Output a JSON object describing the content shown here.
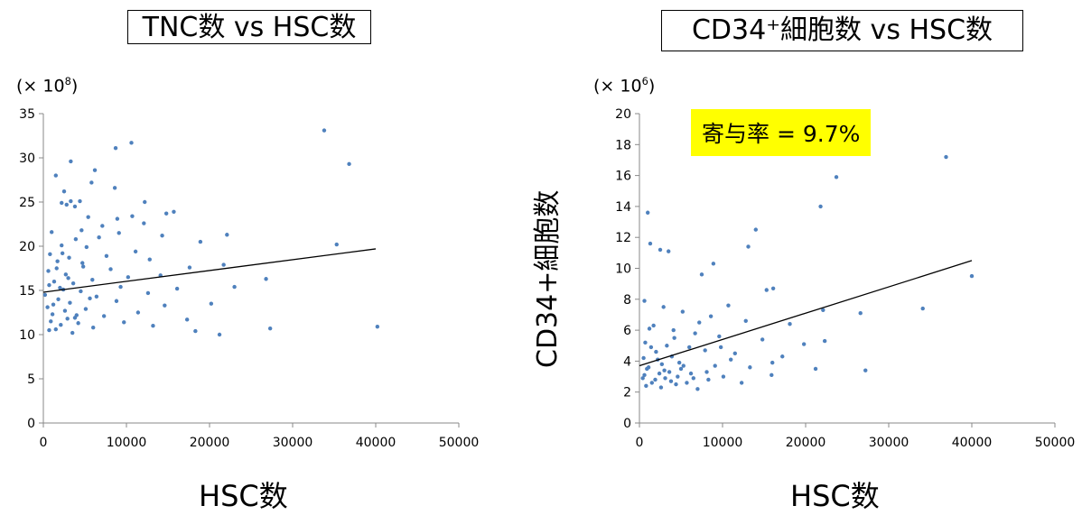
{
  "chart_data": [
    {
      "type": "scatter",
      "title": "TNC数 vs HSC数",
      "xlabel": "HSC数",
      "ylabel": "",
      "y_multiplier": {
        "base": "(× 10",
        "exp": "8",
        "close": ")"
      },
      "xlim": [
        0,
        50000
      ],
      "ylim": [
        0,
        35
      ],
      "x_ticks": [
        0,
        10000,
        20000,
        30000,
        40000,
        50000
      ],
      "y_ticks": [
        0,
        5,
        10,
        15,
        20,
        25,
        30,
        35
      ],
      "grid": false,
      "point_color": "#4f81bd",
      "trendline": {
        "x": [
          0,
          40000
        ],
        "y": [
          14.8,
          19.7
        ],
        "color": "#000000"
      },
      "points": [
        [
          33800,
          33.1
        ],
        [
          10600,
          31.7
        ],
        [
          8700,
          31.1
        ],
        [
          36800,
          29.3
        ],
        [
          3300,
          29.6
        ],
        [
          6200,
          28.6
        ],
        [
          1500,
          28.0
        ],
        [
          8600,
          26.6
        ],
        [
          5800,
          27.2
        ],
        [
          2500,
          26.2
        ],
        [
          3300,
          25.1
        ],
        [
          4400,
          25.1
        ],
        [
          12200,
          25.0
        ],
        [
          2200,
          24.9
        ],
        [
          3800,
          24.5
        ],
        [
          2800,
          24.7
        ],
        [
          5400,
          23.3
        ],
        [
          8900,
          23.1
        ],
        [
          10700,
          23.4
        ],
        [
          14800,
          23.7
        ],
        [
          15700,
          23.9
        ],
        [
          12100,
          22.6
        ],
        [
          7100,
          22.3
        ],
        [
          1000,
          21.6
        ],
        [
          4600,
          21.8
        ],
        [
          22100,
          21.3
        ],
        [
          14300,
          21.2
        ],
        [
          9100,
          21.5
        ],
        [
          6700,
          21.0
        ],
        [
          3900,
          20.8
        ],
        [
          35300,
          20.2
        ],
        [
          18900,
          20.5
        ],
        [
          2200,
          20.1
        ],
        [
          5200,
          19.9
        ],
        [
          11100,
          19.4
        ],
        [
          800,
          19.1
        ],
        [
          3100,
          18.7
        ],
        [
          7600,
          18.9
        ],
        [
          12800,
          18.5
        ],
        [
          1700,
          18.3
        ],
        [
          21700,
          17.9
        ],
        [
          4800,
          17.7
        ],
        [
          17600,
          17.6
        ],
        [
          8100,
          17.4
        ],
        [
          600,
          17.2
        ],
        [
          2700,
          16.8
        ],
        [
          10200,
          16.5
        ],
        [
          14100,
          16.7
        ],
        [
          5900,
          16.2
        ],
        [
          1300,
          16.0
        ],
        [
          26800,
          16.3
        ],
        [
          3600,
          15.8
        ],
        [
          700,
          15.6
        ],
        [
          9300,
          15.4
        ],
        [
          23000,
          15.4
        ],
        [
          16100,
          15.2
        ],
        [
          2400,
          15.1
        ],
        [
          4500,
          14.9
        ],
        [
          12600,
          14.7
        ],
        [
          200,
          14.5
        ],
        [
          6400,
          14.3
        ],
        [
          1800,
          14.0
        ],
        [
          8800,
          13.8
        ],
        [
          3200,
          13.6
        ],
        [
          20200,
          13.5
        ],
        [
          14600,
          13.3
        ],
        [
          500,
          13.1
        ],
        [
          5100,
          12.9
        ],
        [
          2600,
          12.7
        ],
        [
          11400,
          12.5
        ],
        [
          1100,
          12.3
        ],
        [
          7300,
          12.1
        ],
        [
          3800,
          11.9
        ],
        [
          17300,
          11.7
        ],
        [
          900,
          11.5
        ],
        [
          4200,
          11.3
        ],
        [
          2100,
          11.1
        ],
        [
          9700,
          11.4
        ],
        [
          27300,
          10.7
        ],
        [
          13200,
          11.0
        ],
        [
          40200,
          10.9
        ],
        [
          1500,
          10.6
        ],
        [
          6000,
          10.8
        ],
        [
          18300,
          10.4
        ],
        [
          21200,
          10.0
        ],
        [
          3500,
          10.2
        ],
        [
          700,
          10.5
        ],
        [
          2900,
          11.8
        ],
        [
          4000,
          12.2
        ],
        [
          1200,
          13.4
        ],
        [
          5600,
          14.1
        ],
        [
          2000,
          15.3
        ],
        [
          3000,
          16.4
        ],
        [
          1600,
          17.5
        ],
        [
          4700,
          18.1
        ],
        [
          2300,
          19.2
        ]
      ]
    },
    {
      "type": "scatter",
      "title": "CD34⁺細胞数 vs HSC数",
      "xlabel": "HSC数",
      "ylabel": "CD34+細胞数",
      "y_multiplier": {
        "base": "(× 10",
        "exp": "6",
        "close": ")"
      },
      "annotation": "寄与率 = 9.7%",
      "annotation_color": "#ffff00",
      "xlim": [
        0,
        50000
      ],
      "ylim": [
        0,
        20
      ],
      "x_ticks": [
        0,
        10000,
        20000,
        30000,
        40000,
        50000
      ],
      "y_ticks": [
        0,
        2,
        4,
        6,
        8,
        10,
        12,
        14,
        16,
        18,
        20
      ],
      "grid": false,
      "point_color": "#4f81bd",
      "trendline": {
        "x": [
          0,
          40000
        ],
        "y": [
          3.7,
          10.5
        ],
        "color": "#000000"
      },
      "points": [
        [
          36900,
          17.2
        ],
        [
          23700,
          15.9
        ],
        [
          21800,
          14.0
        ],
        [
          1000,
          13.6
        ],
        [
          14000,
          12.5
        ],
        [
          1300,
          11.6
        ],
        [
          2500,
          11.2
        ],
        [
          3500,
          11.1
        ],
        [
          13100,
          11.4
        ],
        [
          40000,
          9.5
        ],
        [
          8900,
          10.3
        ],
        [
          7500,
          9.6
        ],
        [
          34100,
          7.4
        ],
        [
          15300,
          8.6
        ],
        [
          16100,
          8.7
        ],
        [
          10700,
          7.6
        ],
        [
          26600,
          7.1
        ],
        [
          22100,
          7.3
        ],
        [
          600,
          7.9
        ],
        [
          2900,
          7.5
        ],
        [
          5200,
          7.2
        ],
        [
          8600,
          6.9
        ],
        [
          12800,
          6.6
        ],
        [
          18100,
          6.4
        ],
        [
          1700,
          6.3
        ],
        [
          4100,
          6.0
        ],
        [
          6700,
          5.8
        ],
        [
          9600,
          5.6
        ],
        [
          14800,
          5.4
        ],
        [
          22300,
          5.3
        ],
        [
          700,
          5.2
        ],
        [
          3300,
          5.0
        ],
        [
          7900,
          4.7
        ],
        [
          11500,
          4.5
        ],
        [
          17200,
          4.3
        ],
        [
          500,
          4.2
        ],
        [
          2200,
          4.1
        ],
        [
          4800,
          3.9
        ],
        [
          9100,
          3.7
        ],
        [
          16000,
          3.9
        ],
        [
          21200,
          3.5
        ],
        [
          27200,
          3.4
        ],
        [
          1100,
          3.6
        ],
        [
          3000,
          3.4
        ],
        [
          6200,
          3.2
        ],
        [
          10100,
          3.0
        ],
        [
          15900,
          3.1
        ],
        [
          400,
          2.9
        ],
        [
          1900,
          2.8
        ],
        [
          3800,
          2.7
        ],
        [
          5700,
          2.6
        ],
        [
          8300,
          2.8
        ],
        [
          12300,
          2.6
        ],
        [
          800,
          2.4
        ],
        [
          2600,
          2.3
        ],
        [
          4400,
          2.5
        ],
        [
          7000,
          2.2
        ],
        [
          1500,
          2.6
        ],
        [
          3600,
          3.3
        ],
        [
          5000,
          3.5
        ],
        [
          2000,
          4.6
        ],
        [
          6000,
          4.9
        ],
        [
          4200,
          5.5
        ],
        [
          1200,
          6.1
        ],
        [
          7200,
          6.5
        ],
        [
          9800,
          4.9
        ],
        [
          2700,
          3.8
        ],
        [
          600,
          3.1
        ],
        [
          3100,
          2.9
        ],
        [
          5300,
          3.7
        ],
        [
          8100,
          3.3
        ],
        [
          11000,
          4.1
        ],
        [
          13300,
          3.6
        ],
        [
          19800,
          5.1
        ],
        [
          1400,
          4.9
        ],
        [
          900,
          3.5
        ],
        [
          2400,
          3.2
        ],
        [
          4600,
          3.0
        ],
        [
          6500,
          2.9
        ],
        [
          3900,
          4.3
        ]
      ]
    }
  ]
}
